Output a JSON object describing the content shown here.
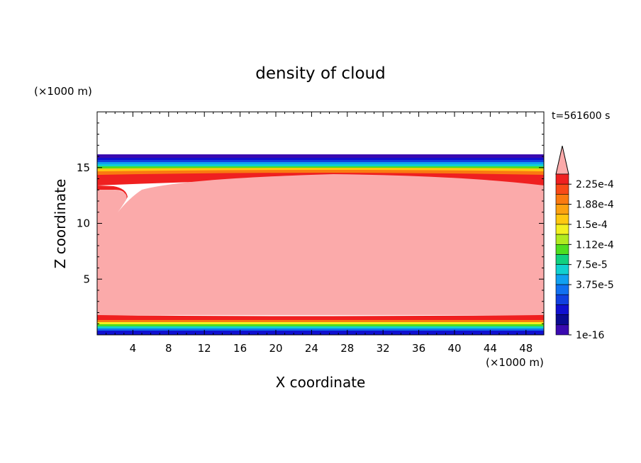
{
  "chart_data": {
    "type": "heatmap",
    "title": "density of cloud",
    "time_label": "t=561600 s",
    "xlabel": "X coordinate",
    "ylabel": "Z coordinate",
    "x_unit": "(×1000 m)",
    "y_unit": "(×1000 m)",
    "xlim": [
      0,
      50
    ],
    "ylim": [
      0,
      20
    ],
    "x_ticks": [
      "4",
      "8",
      "12",
      "16",
      "20",
      "24",
      "28",
      "32",
      "36",
      "40",
      "44",
      "48"
    ],
    "y_ticks": [
      "5",
      "10",
      "15"
    ],
    "colorbar": {
      "labels": [
        "2.25e-4",
        "1.88e-4",
        "1.5e-4",
        "1.12e-4",
        "7.5e-5",
        "3.75e-5",
        "1e-16"
      ],
      "levels_top_to_bottom": [
        "#fbaaaa",
        "#ef2020",
        "#f84a18",
        "#fa7a10",
        "#fca210",
        "#fec810",
        "#f2f020",
        "#b0ea20",
        "#4ede20",
        "#10d080",
        "#10d0d0",
        "#10a0f0",
        "#1070f0",
        "#1040e0",
        "#1010d0",
        "#0a0a90",
        "#3a0ab0"
      ]
    },
    "field_description": {
      "cloud_top_z": 16,
      "cloud_bottom_z": 0.3,
      "saturated_core_value": "> 2.25e-4"
    }
  }
}
